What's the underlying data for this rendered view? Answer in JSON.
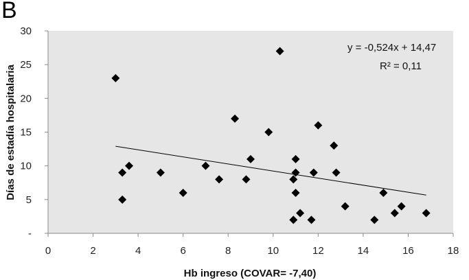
{
  "panel_label": "B",
  "chart_data": {
    "type": "scatter",
    "xlabel": "Hb ingreso   (COVAR= -7,40)",
    "ylabel": "Días de estadía hospitalaria",
    "xlim": [
      0,
      18
    ],
    "ylim": [
      0,
      30
    ],
    "x_ticks": [
      0,
      2,
      4,
      6,
      8,
      10,
      12,
      14,
      16,
      18
    ],
    "y_ticks": [
      0,
      5,
      10,
      15,
      20,
      25,
      30
    ],
    "y_tick_labels": [
      "-",
      "5",
      "10",
      "15",
      "20",
      "25",
      "30"
    ],
    "grid": false,
    "plot_background": "#e6e6e6",
    "marker": "diamond",
    "marker_color": "#000000",
    "points": [
      {
        "x": 3.0,
        "y": 23
      },
      {
        "x": 3.3,
        "y": 9
      },
      {
        "x": 3.3,
        "y": 5
      },
      {
        "x": 3.6,
        "y": 10
      },
      {
        "x": 5.0,
        "y": 9
      },
      {
        "x": 6.0,
        "y": 6
      },
      {
        "x": 7.0,
        "y": 10
      },
      {
        "x": 7.6,
        "y": 8
      },
      {
        "x": 8.3,
        "y": 17
      },
      {
        "x": 8.8,
        "y": 8
      },
      {
        "x": 9.0,
        "y": 11
      },
      {
        "x": 9.8,
        "y": 15
      },
      {
        "x": 10.3,
        "y": 27
      },
      {
        "x": 10.9,
        "y": 8
      },
      {
        "x": 10.9,
        "y": 2
      },
      {
        "x": 11.0,
        "y": 11
      },
      {
        "x": 11.0,
        "y": 9
      },
      {
        "x": 11.0,
        "y": 6
      },
      {
        "x": 11.2,
        "y": 3
      },
      {
        "x": 11.7,
        "y": 2
      },
      {
        "x": 11.8,
        "y": 9
      },
      {
        "x": 12.0,
        "y": 16
      },
      {
        "x": 12.7,
        "y": 13
      },
      {
        "x": 12.8,
        "y": 9
      },
      {
        "x": 13.2,
        "y": 4
      },
      {
        "x": 14.5,
        "y": 2
      },
      {
        "x": 14.9,
        "y": 6
      },
      {
        "x": 15.4,
        "y": 3
      },
      {
        "x": 15.7,
        "y": 4
      },
      {
        "x": 16.8,
        "y": 3
      }
    ],
    "trendline": {
      "type": "linear",
      "slope": -0.524,
      "intercept": 14.47,
      "x_range": [
        3.0,
        16.8
      ]
    },
    "annotations": {
      "equation": "y =  -0,524x + 14,47",
      "r2": "R² = 0,11"
    }
  }
}
